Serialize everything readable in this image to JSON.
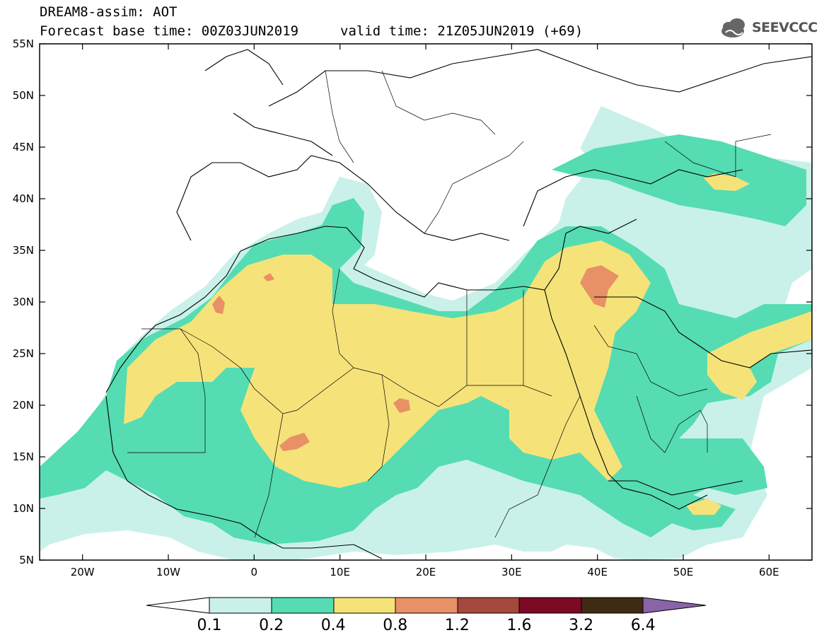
{
  "header": {
    "title": "DREAM8-assim: AOT",
    "base_time": "Forecast base time: 00Z03JUN2019",
    "valid_time": "valid time: 21Z05JUN2019 (+69)"
  },
  "logo": {
    "text": "SEEVCCC",
    "icon": "cloud-logo-icon"
  },
  "map": {
    "lat_labels": [
      "55N",
      "50N",
      "45N",
      "40N",
      "35N",
      "30N",
      "25N",
      "20N",
      "15N",
      "10N",
      "5N"
    ],
    "lon_labels": [
      "20W",
      "10W",
      "0",
      "10E",
      "20E",
      "30E",
      "40E",
      "50E",
      "60E"
    ],
    "lat_range": [
      5,
      55
    ],
    "lon_range": [
      -25,
      65
    ]
  },
  "colorbar": {
    "labels": [
      "0.1",
      "0.2",
      "0.4",
      "0.8",
      "1.2",
      "1.6",
      "3.2",
      "6.4"
    ],
    "colors": [
      "#ffffff",
      "#c9f1ea",
      "#55dcb2",
      "#f5e37a",
      "#e89066",
      "#a5483d",
      "#7d0a24",
      "#3f2a14",
      "#8a63a8"
    ]
  },
  "colors": {
    "c01": "#c9f1ea",
    "c02": "#55dcb2",
    "c04": "#f5e37a",
    "c08": "#e89066"
  }
}
